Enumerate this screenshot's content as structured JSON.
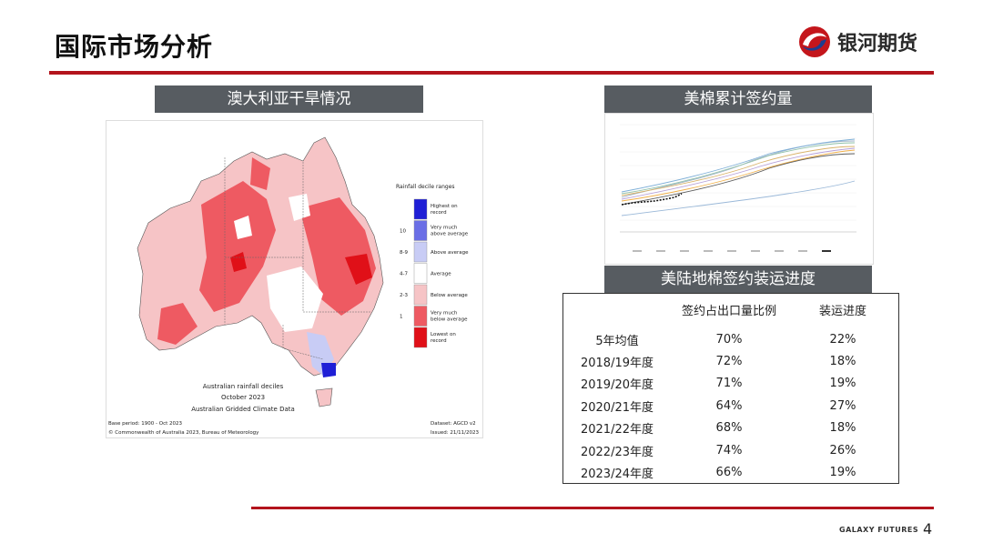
{
  "page": {
    "title": "国际市场分析",
    "logo_text": "银河期货",
    "footer_brand": "GALAXY FUTURES",
    "page_number": "4"
  },
  "map": {
    "header": "澳大利亚干旱情况",
    "legend_title": "Rainfall decile ranges",
    "legend": [
      {
        "label": "Highest on record",
        "range": "",
        "color": "#1f1fd6"
      },
      {
        "label": "Very much above average",
        "range": "10",
        "color": "#6a6ee6"
      },
      {
        "label": "Above average",
        "range": "8-9",
        "color": "#c8ccf5"
      },
      {
        "label": "Average",
        "range": "4-7",
        "color": "#ffffff"
      },
      {
        "label": "Below average",
        "range": "2-3",
        "color": "#f6c4c6"
      },
      {
        "label": "Very much below average",
        "range": "1",
        "color": "#ee5a62"
      },
      {
        "label": "Lowest on record",
        "range": "",
        "color": "#e01018"
      }
    ],
    "caption_line1": "Australian rainfall deciles",
    "caption_line2": "October 2023",
    "caption_line3": "Australian Gridded Climate Data",
    "base_period": "Base period: 1900 - Oct 2023",
    "dataset": "Dataset: AGCD v2",
    "copyright": "© Commonwealth of Australia 2023, Bureau of Meteorology",
    "issued": "Issued: 21/11/2023"
  },
  "cumulative": {
    "header": "美棉累计签约量"
  },
  "progress": {
    "header": "美陆地棉签约装运进度",
    "columns": [
      "",
      "签约占出口量比例",
      "装运进度"
    ],
    "rows": [
      {
        "year": "5年均值",
        "ratio": "70%",
        "shipment": "22%"
      },
      {
        "year": "2018/19年度",
        "ratio": "72%",
        "shipment": "18%"
      },
      {
        "year": "2019/20年度",
        "ratio": "71%",
        "shipment": "19%"
      },
      {
        "year": "2020/21年度",
        "ratio": "64%",
        "shipment": "27%"
      },
      {
        "year": "2021/22年度",
        "ratio": "68%",
        "shipment": "18%"
      },
      {
        "year": "2022/23年度",
        "ratio": "74%",
        "shipment": "26%"
      },
      {
        "year": "2023/24年度",
        "ratio": "66%",
        "shipment": "19%"
      }
    ]
  }
}
